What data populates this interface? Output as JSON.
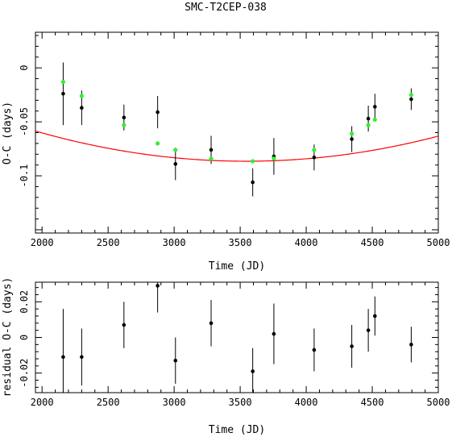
{
  "title": "SMC-T2CEP-038",
  "chart_data": [
    {
      "type": "scatter",
      "xlabel": "Time (JD)",
      "ylabel": "O-C (days)",
      "xlim": [
        1950,
        5000
      ],
      "ylim": [
        -0.153,
        0.033
      ],
      "xticks": [
        2000,
        2500,
        3000,
        3500,
        4000,
        4500,
        5000
      ],
      "yticks": [
        0,
        -0.05,
        -0.1
      ],
      "ytick_labels": [
        "0",
        "-0.05",
        "-0.1"
      ],
      "series": [
        {
          "kind": "observed",
          "color": "#000000",
          "points": [
            {
              "x": 2160,
              "y": -0.024,
              "err": 0.029
            },
            {
              "x": 2300,
              "y": -0.037,
              "err": 0.016
            },
            {
              "x": 2620,
              "y": -0.046,
              "err": 0.012
            },
            {
              "x": 2875,
              "y": -0.041,
              "err": 0.015
            },
            {
              "x": 3010,
              "y": -0.089,
              "err": 0.015
            },
            {
              "x": 3280,
              "y": -0.076,
              "err": 0.013
            },
            {
              "x": 3595,
              "y": -0.106,
              "err": 0.013
            },
            {
              "x": 3755,
              "y": -0.082,
              "err": 0.017
            },
            {
              "x": 4060,
              "y": -0.083,
              "err": 0.012
            },
            {
              "x": 4345,
              "y": -0.066,
              "err": 0.012
            },
            {
              "x": 4470,
              "y": -0.047,
              "err": 0.012
            },
            {
              "x": 4520,
              "y": -0.036,
              "err": 0.012
            },
            {
              "x": 4795,
              "y": -0.029,
              "err": 0.01
            }
          ]
        },
        {
          "kind": "fit",
          "color": "#33ee33",
          "points": [
            {
              "x": 2160,
              "y": -0.013
            },
            {
              "x": 2300,
              "y": -0.026
            },
            {
              "x": 2620,
              "y": -0.053
            },
            {
              "x": 2875,
              "y": -0.07
            },
            {
              "x": 3010,
              "y": -0.076
            },
            {
              "x": 3280,
              "y": -0.084
            },
            {
              "x": 3595,
              "y": -0.0865
            },
            {
              "x": 3755,
              "y": -0.084
            },
            {
              "x": 4060,
              "y": -0.076
            },
            {
              "x": 4345,
              "y": -0.061
            },
            {
              "x": 4470,
              "y": -0.053
            },
            {
              "x": 4520,
              "y": -0.048
            },
            {
              "x": 4795,
              "y": -0.025
            }
          ]
        }
      ],
      "fit_curve": {
        "color": "#ff0000",
        "form": "quadratic",
        "vertex_x": 3545,
        "vertex_y": -0.0865,
        "coef_a": 1.1e-08
      }
    },
    {
      "type": "scatter",
      "xlabel": "Time (JD)",
      "ylabel": "residual O-C (days)",
      "xlim": [
        1950,
        5000
      ],
      "ylim": [
        -0.031,
        0.031
      ],
      "xticks": [
        2000,
        2500,
        3000,
        3500,
        4000,
        4500,
        5000
      ],
      "yticks": [
        0.02,
        0,
        -0.02
      ],
      "ytick_labels": [
        "0.02",
        "0",
        "-0.02"
      ],
      "series": [
        {
          "kind": "residual",
          "color": "#000000",
          "points": [
            {
              "x": 2160,
              "y": -0.011,
              "err": 0.027
            },
            {
              "x": 2300,
              "y": -0.011,
              "err": 0.016
            },
            {
              "x": 2620,
              "y": 0.007,
              "err": 0.013
            },
            {
              "x": 2875,
              "y": 0.029,
              "err": 0.015
            },
            {
              "x": 3010,
              "y": -0.013,
              "err": 0.013
            },
            {
              "x": 3280,
              "y": 0.008,
              "err": 0.013
            },
            {
              "x": 3595,
              "y": -0.019,
              "err": 0.013
            },
            {
              "x": 3755,
              "y": 0.002,
              "err": 0.017
            },
            {
              "x": 4060,
              "y": -0.007,
              "err": 0.012
            },
            {
              "x": 4345,
              "y": -0.005,
              "err": 0.012
            },
            {
              "x": 4470,
              "y": 0.004,
              "err": 0.012
            },
            {
              "x": 4520,
              "y": 0.012,
              "err": 0.011
            },
            {
              "x": 4795,
              "y": -0.004,
              "err": 0.01
            }
          ]
        }
      ]
    }
  ]
}
